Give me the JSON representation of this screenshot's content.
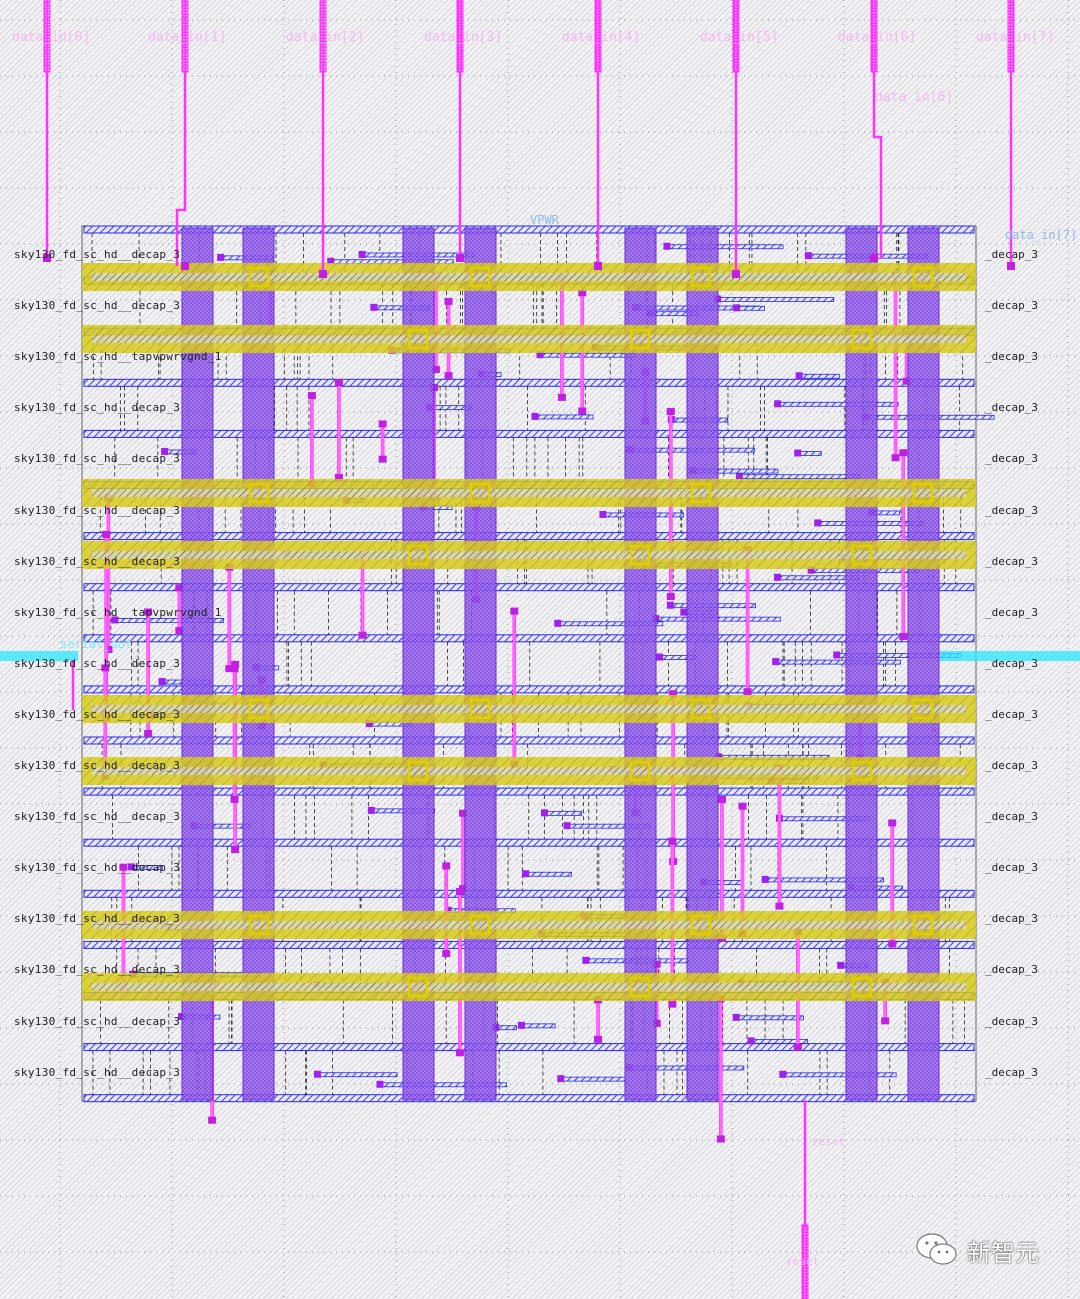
{
  "layout": {
    "top_pins": [
      "data_in[0]",
      "data_in[1]",
      "data_in[2]",
      "data_in[3]",
      "data_in[4]",
      "data_in[5]",
      "data_in[6]",
      "data_in[7]"
    ],
    "inner_pin_label": "data_in[6]",
    "power_label": "VPWR",
    "left_pin_label": "serial_out",
    "right_pin_label": "data_in[7]",
    "bottom_pin_labels": [
      "reset",
      "reset"
    ],
    "cell_rows": [
      "sky130_fd_sc_hd__decap_3",
      "sky130_fd_sc_hd__decap_3",
      "sky130_fd_sc_hd__tapvpwrvgnd_1",
      "sky130_fd_sc_hd__decap_3",
      "sky130_fd_sc_hd__decap_3",
      "sky130_fd_sc_hd__decap_3",
      "sky130_fd_sc_hd__decap_3",
      "sky130_fd_sc_hd__tapvpwrvgnd_1",
      "sky130_fd_sc_hd__decap_3",
      "sky130_fd_sc_hd__decap_3",
      "sky130_fd_sc_hd__decap_3",
      "sky130_fd_sc_hd__decap_3",
      "sky130_fd_sc_hd__decap_3",
      "sky130_fd_sc_hd__decap_3",
      "sky130_fd_sc_hd__decap_3",
      "sky130_fd_sc_hd__decap_3",
      "sky130_fd_sc_hd__decap_3"
    ],
    "right_row_suffix": "_decap_3",
    "colors": {
      "met1_rail": "#2a2ae0",
      "met4_strap": "#8a4ee6",
      "met5_strap": "#d8cc1a",
      "pin_metal": "#ff33ff",
      "io_pin": "#33e6ff",
      "via": "#e0d000"
    }
  },
  "watermark": {
    "text": "新智元",
    "icon": "wechat-icon"
  }
}
